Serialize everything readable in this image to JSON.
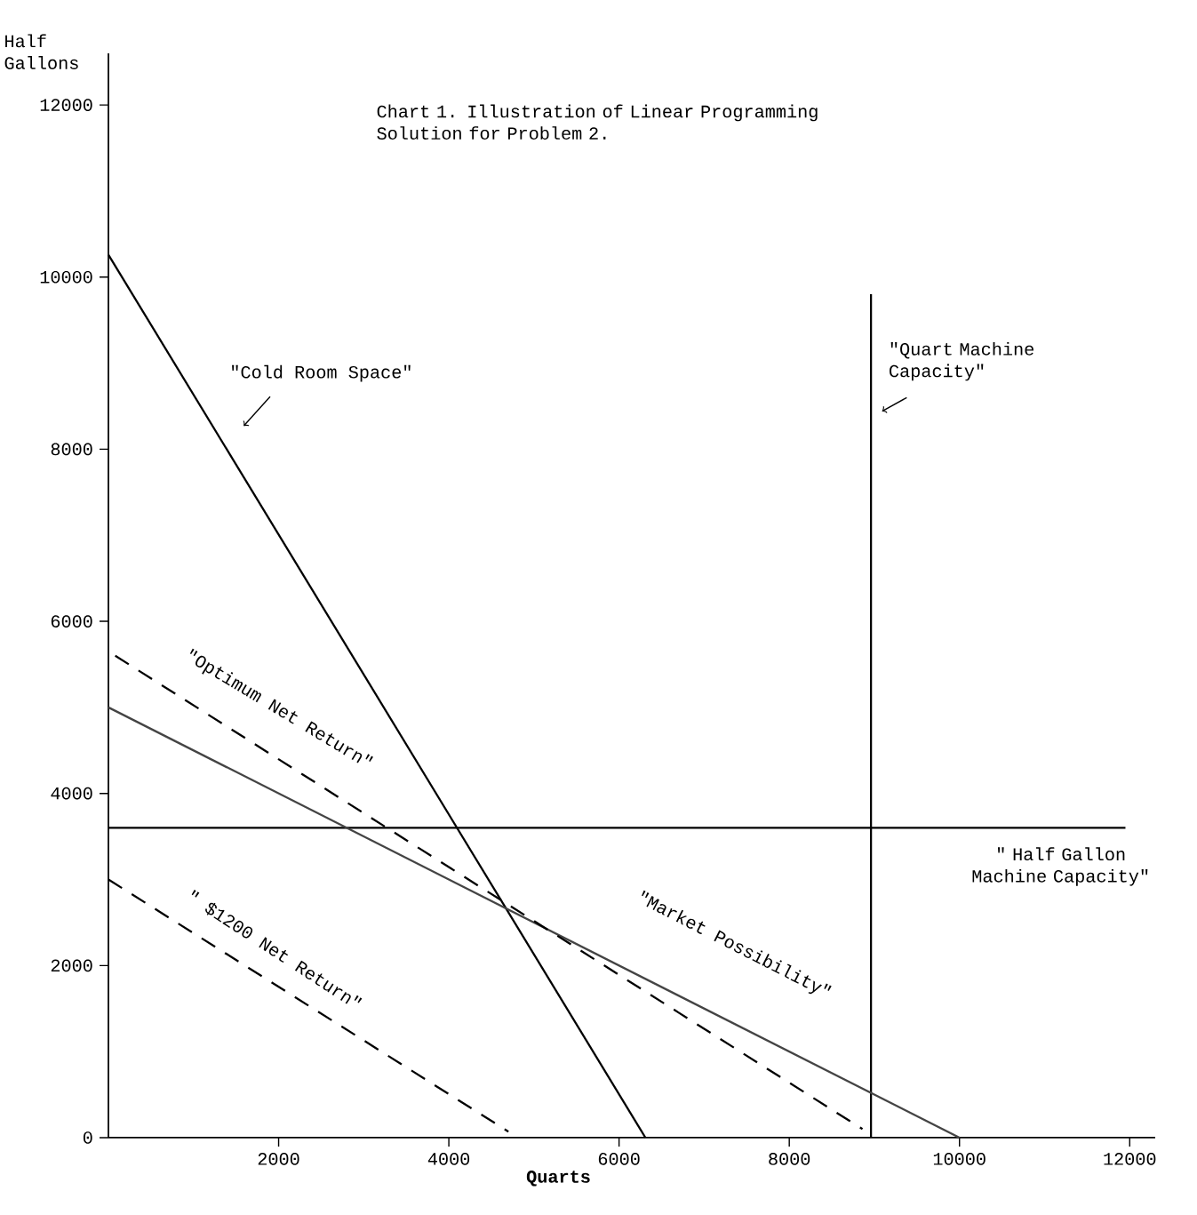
{
  "chart_data": {
    "type": "line",
    "title": "Chart 1.  Illustration of Linear Programming Solution for Problem 2.",
    "xlabel": "Quarts",
    "ylabel": "Half Gallons",
    "xlim": [
      0,
      12300
    ],
    "ylim": [
      0,
      12600
    ],
    "xticks": [
      2000,
      4000,
      6000,
      8000,
      10000,
      12000
    ],
    "yticks": [
      0,
      2000,
      4000,
      6000,
      8000,
      10000,
      12000
    ],
    "grid": false,
    "marker": "none",
    "series": [
      {
        "color": "#000000",
        "line_style": "solid",
        "x": [
          0,
          6310
        ],
        "values": [
          10260,
          0
        ]
      },
      {
        "color": "#000000",
        "line_style": "solid",
        "x": [
          8960,
          8960
        ],
        "values": [
          0,
          9800
        ]
      },
      {
        "color": "#000000",
        "line_style": "solid",
        "x": [
          0,
          11950
        ],
        "values": [
          3600,
          3600
        ]
      },
      {
        "color": "#444444",
        "line_style": "solid",
        "x": [
          0,
          10000
        ],
        "values": [
          5000,
          0
        ]
      },
      {
        "color": "#000000",
        "line_style": "dashed",
        "x": [
          80,
          8860
        ],
        "values": [
          5600,
          100
        ]
      },
      {
        "color": "#000000",
        "line_style": "dashed",
        "x": [
          0,
          4700
        ],
        "values": [
          3000,
          70
        ]
      }
    ],
    "annotations": [
      "\"Cold Room Space\"",
      "\"Quart Machine Capacity\"",
      "\" Half Gallon Machine Capacity\"",
      "\"Optimum Net Return\"",
      "\"Market Possibility\"",
      "\" $1200 Net Return\""
    ]
  }
}
